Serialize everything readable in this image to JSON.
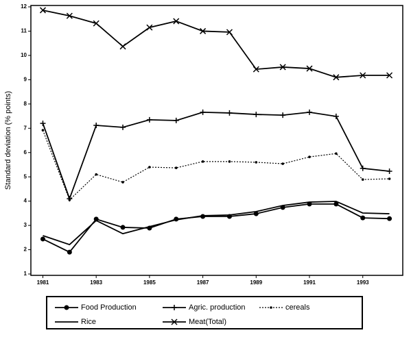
{
  "chart_data": {
    "type": "line",
    "y_label": "Standard deviation (% points)",
    "x": [
      1981,
      1982,
      1983,
      1984,
      1985,
      1986,
      1987,
      1988,
      1989,
      1990,
      1991,
      1992,
      1993,
      1994
    ],
    "series": [
      {
        "name": "Food Production",
        "color": "#000000",
        "marker": "circle",
        "dash": "none",
        "values": [
          2.44,
          1.9,
          3.26,
          2.92,
          2.89,
          3.26,
          3.37,
          3.37,
          3.48,
          3.74,
          3.88,
          3.88,
          3.31,
          3.28
        ]
      },
      {
        "name": "Agric. production",
        "color": "#000000",
        "marker": "plus",
        "dash": "none",
        "values": [
          7.2,
          4.1,
          7.12,
          7.04,
          7.35,
          7.32,
          7.66,
          7.63,
          7.57,
          7.54,
          7.66,
          7.49,
          5.35,
          5.23
        ]
      },
      {
        "name": "cereals",
        "color": "#000000",
        "marker": "dot",
        "dash": "dotted",
        "values": [
          6.92,
          4.05,
          5.1,
          4.78,
          5.4,
          5.37,
          5.63,
          5.63,
          5.6,
          5.54,
          5.82,
          5.96,
          4.89,
          4.92
        ]
      },
      {
        "name": "Rice",
        "color": "#000000",
        "marker": "none",
        "dash": "none",
        "values": [
          2.58,
          2.21,
          3.2,
          2.66,
          2.95,
          3.23,
          3.4,
          3.43,
          3.57,
          3.82,
          3.96,
          3.99,
          3.51,
          3.48
        ]
      },
      {
        "name": "Meat(Total)",
        "color": "#000000",
        "marker": "x",
        "dash": "none",
        "values": [
          11.86,
          11.63,
          11.32,
          10.37,
          11.15,
          11.41,
          11.0,
          10.96,
          9.43,
          9.52,
          9.46,
          9.1,
          9.18,
          9.18
        ]
      }
    ],
    "xlim": [
      1980.55,
      1994.5
    ],
    "xticks": [
      1981,
      1983,
      1985,
      1987,
      1989,
      1991,
      1993
    ],
    "ylim": [
      1,
      12
    ],
    "yticks": [
      1,
      2,
      3,
      4,
      5,
      6,
      7,
      8,
      9,
      10,
      11,
      12
    ],
    "legend": "bottom"
  }
}
